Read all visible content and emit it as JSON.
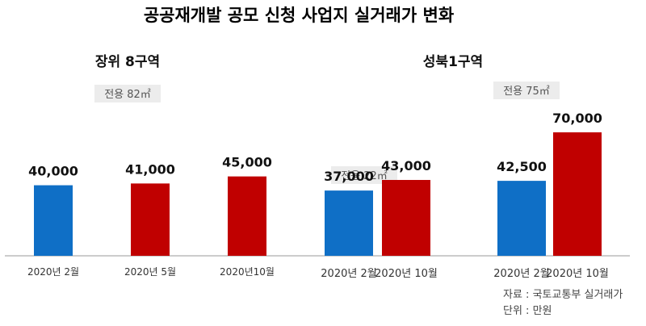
{
  "chart_data": [
    {
      "type": "bar",
      "group": "장위 8구역",
      "area_note": "전용 82㎡",
      "categories": [
        "2020년 2월",
        "2020년 5월",
        "2020년10월"
      ],
      "values": [
        40000,
        41000,
        45000
      ],
      "value_labels": [
        "40,000",
        "41,000",
        "45,000"
      ],
      "colors": [
        "#0f6fc6",
        "#c00000",
        "#c00000"
      ]
    },
    {
      "type": "bar",
      "group": "성북1구역",
      "subgroups": [
        {
          "area_note": "전용 22㎡",
          "categories": [
            "2020년 2월",
            "2020년 10월"
          ],
          "values": [
            37000,
            43000
          ],
          "value_labels": [
            "37,000",
            "43,000"
          ],
          "colors": [
            "#0f6fc6",
            "#c00000"
          ]
        },
        {
          "area_note": "전용 75㎡",
          "categories": [
            "2020년 2월",
            "2020년 10월"
          ],
          "values": [
            42500,
            70000
          ],
          "value_labels": [
            "42,500",
            "70,000"
          ],
          "colors": [
            "#0f6fc6",
            "#c00000"
          ]
        }
      ]
    }
  ],
  "title": "공공재개발 공모 신청 사업지 실거래가 변화",
  "source": "자료 : 국토교통부 실거래가",
  "unit": "단위 : 만원"
}
